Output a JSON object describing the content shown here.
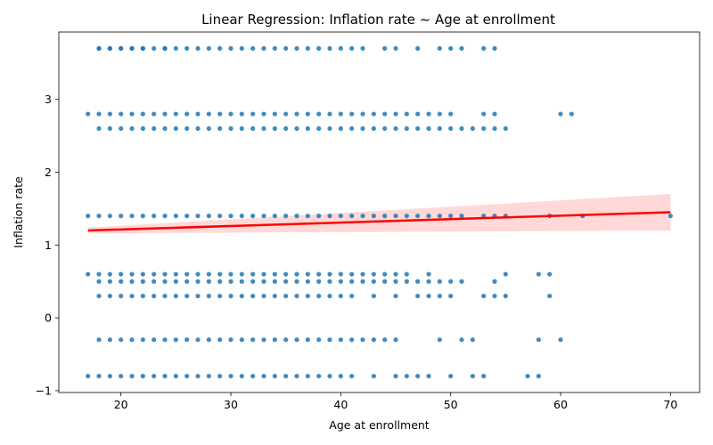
{
  "chart_data": {
    "type": "scatter",
    "title": "Linear Regression: Inflation rate ~ Age at enrollment",
    "xlabel": "Age at enrollment",
    "ylabel": "Inflation rate",
    "xlim": [
      14.35,
      72.65
    ],
    "ylim": [
      -1.025,
      3.925
    ],
    "xticks": [
      20,
      30,
      40,
      50,
      60,
      70
    ],
    "yticks": [
      -1,
      0,
      1,
      2,
      3
    ],
    "grid": false,
    "legend": "none",
    "point_color": "#1f77b4",
    "line_color": "#ff0000",
    "band_color": "#ff9999",
    "series": [
      {
        "values": [
          {
            "y": 3.7,
            "x": [
              18,
              18,
              19,
              19,
              20,
              20,
              21,
              21,
              22,
              22,
              23,
              24,
              24,
              25,
              26,
              27,
              28,
              29,
              30,
              31,
              32,
              33,
              34,
              35,
              36,
              37,
              38,
              39,
              40,
              41,
              42,
              44,
              45,
              47,
              49,
              50,
              51,
              53,
              54
            ]
          },
          {
            "y": 2.8,
            "x": [
              17,
              18,
              19,
              20,
              21,
              22,
              23,
              24,
              25,
              26,
              27,
              28,
              29,
              30,
              31,
              32,
              33,
              34,
              35,
              36,
              37,
              38,
              39,
              40,
              41,
              42,
              43,
              44,
              45,
              46,
              47,
              48,
              49,
              50,
              53,
              54,
              60,
              61
            ]
          },
          {
            "y": 2.6,
            "x": [
              18,
              19,
              20,
              21,
              22,
              23,
              24,
              25,
              26,
              27,
              28,
              29,
              30,
              31,
              32,
              33,
              34,
              35,
              36,
              37,
              38,
              39,
              40,
              41,
              42,
              43,
              44,
              45,
              46,
              47,
              48,
              49,
              50,
              51,
              52,
              53,
              54,
              55
            ]
          },
          {
            "y": 1.4,
            "x": [
              17,
              18,
              19,
              20,
              21,
              22,
              23,
              24,
              25,
              26,
              27,
              28,
              29,
              30,
              31,
              32,
              33,
              34,
              35,
              36,
              37,
              38,
              39,
              40,
              41,
              42,
              43,
              44,
              45,
              46,
              47,
              48,
              49,
              50,
              51,
              53,
              54,
              55,
              59,
              62,
              70
            ]
          },
          {
            "y": 0.6,
            "x": [
              17,
              18,
              19,
              20,
              21,
              22,
              23,
              24,
              25,
              26,
              27,
              28,
              29,
              30,
              31,
              32,
              33,
              34,
              35,
              36,
              37,
              38,
              39,
              40,
              41,
              42,
              43,
              44,
              45,
              46,
              48,
              55,
              58,
              59
            ]
          },
          {
            "y": 0.5,
            "x": [
              18,
              19,
              20,
              21,
              22,
              23,
              24,
              25,
              26,
              27,
              28,
              29,
              30,
              31,
              32,
              33,
              34,
              35,
              36,
              37,
              38,
              39,
              40,
              41,
              42,
              43,
              44,
              45,
              46,
              47,
              48,
              49,
              50,
              51,
              54
            ]
          },
          {
            "y": 0.3,
            "x": [
              18,
              19,
              20,
              21,
              22,
              23,
              24,
              25,
              26,
              27,
              28,
              29,
              30,
              31,
              32,
              33,
              34,
              35,
              36,
              37,
              38,
              39,
              40,
              41,
              43,
              45,
              47,
              48,
              49,
              50,
              53,
              54,
              55,
              59
            ]
          },
          {
            "y": -0.3,
            "x": [
              18,
              19,
              20,
              21,
              22,
              23,
              24,
              25,
              26,
              27,
              28,
              29,
              30,
              31,
              32,
              33,
              34,
              35,
              36,
              37,
              38,
              39,
              40,
              41,
              42,
              43,
              44,
              45,
              49,
              51,
              52,
              58,
              60
            ]
          },
          {
            "y": -0.8,
            "x": [
              17,
              18,
              19,
              20,
              21,
              22,
              23,
              24,
              25,
              26,
              27,
              28,
              29,
              30,
              31,
              32,
              33,
              34,
              35,
              36,
              37,
              38,
              39,
              40,
              41,
              43,
              45,
              46,
              47,
              48,
              50,
              52,
              53,
              57,
              58
            ]
          }
        ]
      }
    ],
    "regression": {
      "x": [
        17,
        70
      ],
      "y": [
        1.2,
        1.45
      ],
      "ci_lower": [
        1.16,
        1.2
      ],
      "ci_upper": [
        1.24,
        1.7
      ]
    }
  }
}
